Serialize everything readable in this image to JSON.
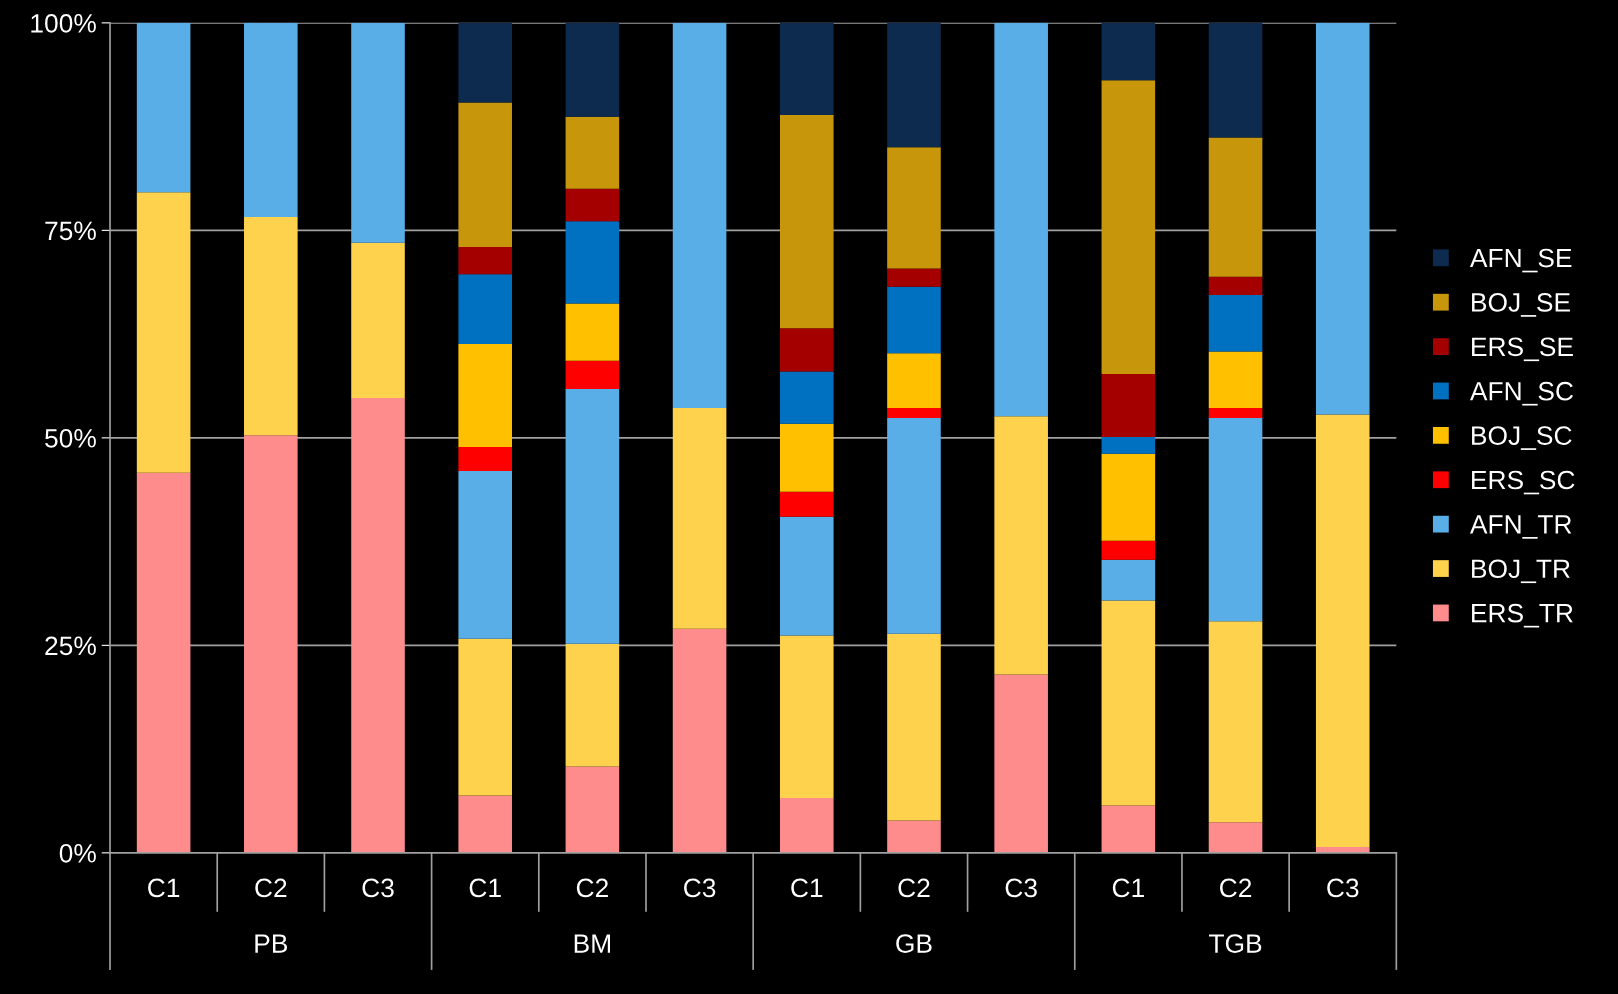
{
  "chart_data": {
    "type": "bar",
    "stacked": true,
    "categories": [
      "C1",
      "C2",
      "C3",
      "C1",
      "C2",
      "C3",
      "C1",
      "C2",
      "C3",
      "C1",
      "C2",
      "C3"
    ],
    "annotations": [
      "PB",
      "BM",
      "GB",
      "TGB"
    ],
    "series": [
      {
        "name": "ERS_TR",
        "color": "#ff8c8c",
        "values": [
          45.8,
          50.3,
          54.8,
          6.9,
          10.4,
          27.0,
          6.6,
          3.9,
          21.5,
          5.7,
          3.7,
          0.7
        ]
      },
      {
        "name": "BOJ_TR",
        "color": "#ffd24d",
        "values": [
          33.8,
          26.3,
          18.7,
          18.9,
          14.8,
          26.6,
          19.6,
          22.5,
          31.1,
          24.7,
          24.2,
          52.1
        ]
      },
      {
        "name": "AFN_TR",
        "color": "#5aaee8",
        "values": [
          20.4,
          23.4,
          26.5,
          20.2,
          30.7,
          46.4,
          14.3,
          26.0,
          47.4,
          4.9,
          24.5,
          47.2
        ]
      },
      {
        "name": "ERS_SC",
        "color": "#ff0000",
        "values": [
          0,
          0,
          0,
          2.9,
          3.4,
          0,
          3.0,
          1.2,
          0,
          2.3,
          1.2,
          0
        ]
      },
      {
        "name": "BOJ_SC",
        "color": "#ffc000",
        "values": [
          0,
          0,
          0,
          12.4,
          6.9,
          0,
          8.2,
          6.6,
          0,
          10.5,
          6.8,
          0
        ]
      },
      {
        "name": "AFN_SC",
        "color": "#0070c0",
        "values": [
          0,
          0,
          0,
          8.4,
          9.9,
          0,
          6.3,
          8.0,
          0,
          2.0,
          6.8,
          0
        ]
      },
      {
        "name": "ERS_SE",
        "color": "#a50000",
        "values": [
          0,
          0,
          0,
          3.3,
          3.9,
          0,
          5.2,
          2.2,
          0,
          7.6,
          2.2,
          0
        ]
      },
      {
        "name": "BOJ_SE",
        "color": "#c8960a",
        "values": [
          0,
          0,
          0,
          17.4,
          8.7,
          0,
          25.7,
          14.6,
          0,
          35.4,
          16.8,
          0
        ]
      },
      {
        "name": "AFN_SE",
        "color": "#0c2b4e",
        "values": [
          0,
          0,
          0,
          9.6,
          11.3,
          0,
          11.1,
          15.0,
          0,
          6.9,
          13.8,
          0
        ]
      }
    ],
    "ylim": [
      0,
      100
    ],
    "yticks": [
      {
        "value": 0,
        "label": "0%"
      },
      {
        "value": 25,
        "label": "25%"
      },
      {
        "value": 50,
        "label": "50%"
      },
      {
        "value": 75,
        "label": "75%"
      },
      {
        "value": 100,
        "label": "100%"
      }
    ],
    "grid": "y",
    "legend": "right"
  }
}
